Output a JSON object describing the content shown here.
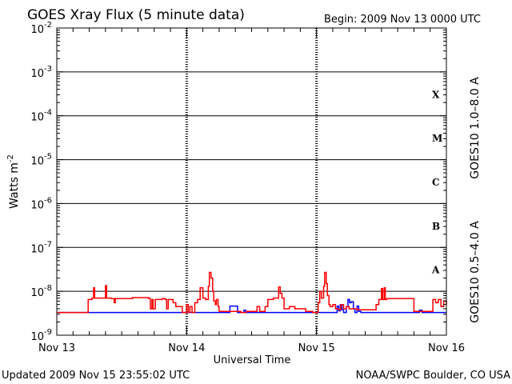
{
  "title": "GOES Xray Flux (5 minute data)",
  "begin": "Begin:  2009 Nov 13 0000 UTC",
  "updated": "Updated 2009 Nov 15 23:55:02 UTC",
  "credit": "NOAA/SWPC Boulder, CO USA",
  "ylabel_main": "Watts m",
  "ylabel_exp": "-2",
  "xlabel": "Universal Time",
  "right_labels": {
    "long": "GOES10 1.0–8.0 A",
    "short": "GOES10 0.5–4.0 A"
  },
  "colors": {
    "long": "#ff0000",
    "short": "#0000ff",
    "axis": "#000000"
  },
  "chart_data": {
    "type": "line",
    "title": "GOES Xray Flux (5 minute data)",
    "xlabel": "Universal Time",
    "ylabel": "Watts m^-2",
    "yscale": "log",
    "ylim": [
      1e-09,
      0.01
    ],
    "xlim": [
      0,
      72
    ],
    "x_unit": "hours since 2009 Nov 13 0000 UTC",
    "x_ticks": [
      {
        "x": 0,
        "label": "Nov 13"
      },
      {
        "x": 24,
        "label": "Nov 14"
      },
      {
        "x": 48,
        "label": "Nov 15"
      },
      {
        "x": 72,
        "label": "Nov 16"
      }
    ],
    "y_ticks": [
      {
        "base": "10",
        "exp": "-9",
        "value": 1e-09
      },
      {
        "base": "10",
        "exp": "-8",
        "value": 1e-08
      },
      {
        "base": "10",
        "exp": "-7",
        "value": 1e-07
      },
      {
        "base": "10",
        "exp": "-6",
        "value": 1e-06
      },
      {
        "base": "10",
        "exp": "-5",
        "value": 1e-05
      },
      {
        "base": "10",
        "exp": "-4",
        "value": 0.0001
      },
      {
        "base": "10",
        "exp": "-3",
        "value": 0.001
      },
      {
        "base": "10",
        "exp": "-2",
        "value": 0.01
      }
    ],
    "flare_classes": [
      {
        "label": "A",
        "log_center": -7.5
      },
      {
        "label": "B",
        "log_center": -6.5
      },
      {
        "label": "C",
        "log_center": -5.5
      },
      {
        "label": "M",
        "log_center": -4.5
      },
      {
        "label": "X",
        "log_center": -3.5
      }
    ],
    "grid": "horizontal lines at each decade from 1e-8 to 1e-3; dotted vertical lines at day boundaries",
    "series": [
      {
        "name": "GOES10 1.0–8.0 A",
        "color": "#ff0000",
        "points": [
          [
            0,
            3.3e-09
          ],
          [
            5,
            3.3e-09
          ],
          [
            5.5,
            3.3e-09
          ],
          [
            5.8,
            6.5e-09
          ],
          [
            6.5,
            7e-09
          ],
          [
            6.8,
            1.2e-08
          ],
          [
            7,
            7e-09
          ],
          [
            8.5,
            7e-09
          ],
          [
            9,
            1.35e-08
          ],
          [
            9.2,
            7e-09
          ],
          [
            9.8,
            7e-09
          ],
          [
            10,
            6.8e-09
          ],
          [
            10.4,
            6.8e-09
          ],
          [
            10.6,
            5.5e-09
          ],
          [
            10.8,
            6.8e-09
          ],
          [
            14,
            7.2e-09
          ],
          [
            17,
            6.8e-09
          ],
          [
            17.3,
            4e-09
          ],
          [
            17.6,
            6.5e-09
          ],
          [
            17.8,
            4e-09
          ],
          [
            18.2,
            6.5e-09
          ],
          [
            19.5,
            6.8e-09
          ],
          [
            20,
            6.5e-09
          ],
          [
            20.3,
            4e-09
          ],
          [
            20.6,
            6.5e-09
          ],
          [
            21.5,
            5.5e-09
          ],
          [
            22,
            4.5e-09
          ],
          [
            23,
            4.5e-09
          ],
          [
            23.2,
            3.3e-09
          ],
          [
            23.8,
            3.3e-09
          ],
          [
            24,
            5e-09
          ],
          [
            24.3,
            3.3e-09
          ],
          [
            24.6,
            4.5e-09
          ],
          [
            25,
            3.3e-09
          ],
          [
            25.3,
            3.3e-09
          ],
          [
            25.5,
            5.5e-09
          ],
          [
            26,
            6.5e-09
          ],
          [
            26.5,
            1.2e-08
          ],
          [
            27,
            7e-09
          ],
          [
            27.5,
            6.5e-09
          ],
          [
            28,
            1.3e-08
          ],
          [
            28.2,
            2.7e-08
          ],
          [
            28.5,
            2e-08
          ],
          [
            28.8,
            1e-08
          ],
          [
            29,
            6e-09
          ],
          [
            29.3,
            5e-09
          ],
          [
            29.5,
            6.5e-09
          ],
          [
            29.8,
            4.5e-09
          ],
          [
            30,
            3.5e-09
          ],
          [
            31,
            3.5e-09
          ],
          [
            33,
            3.5e-09
          ],
          [
            34,
            3.3e-09
          ],
          [
            35,
            3.5e-09
          ],
          [
            36,
            3.5e-09
          ],
          [
            37,
            4.5e-09
          ],
          [
            37.5,
            3.5e-09
          ],
          [
            38,
            3.5e-09
          ],
          [
            38.5,
            4.5e-09
          ],
          [
            39,
            6.5e-09
          ],
          [
            40,
            7e-09
          ],
          [
            40.8,
            7e-09
          ],
          [
            41,
            1.25e-08
          ],
          [
            41.3,
            9e-09
          ],
          [
            41.6,
            7e-09
          ],
          [
            42,
            4e-09
          ],
          [
            42.5,
            4e-09
          ],
          [
            43,
            4.5e-09
          ],
          [
            43.5,
            4.5e-09
          ],
          [
            44,
            4e-09
          ],
          [
            45,
            4e-09
          ],
          [
            46,
            3.5e-09
          ],
          [
            47,
            3.5e-09
          ],
          [
            47.3,
            3.3e-09
          ],
          [
            48,
            3.3e-09
          ],
          [
            48.3,
            5.5e-09
          ],
          [
            48.6,
            1e-08
          ],
          [
            48.9,
            7e-09
          ],
          [
            49.3,
            1.3e-08
          ],
          [
            49.5,
            2.7e-08
          ],
          [
            49.8,
            1.5e-08
          ],
          [
            50,
            8e-09
          ],
          [
            50.3,
            5e-09
          ],
          [
            50.5,
            4.5e-09
          ],
          [
            51,
            5e-09
          ],
          [
            51.5,
            4e-09
          ],
          [
            52,
            3.8e-09
          ],
          [
            52.5,
            5e-09
          ],
          [
            53,
            4e-09
          ],
          [
            53.5,
            4.5e-09
          ],
          [
            54,
            4e-09
          ],
          [
            54.5,
            4e-09
          ],
          [
            55,
            4e-09
          ],
          [
            55.5,
            3.8e-09
          ],
          [
            56,
            3.8e-09
          ],
          [
            56.5,
            3.8e-09
          ],
          [
            57,
            3.8e-09
          ],
          [
            58,
            3.8e-09
          ],
          [
            58.8,
            3.8e-09
          ],
          [
            59,
            5e-09
          ],
          [
            59.5,
            6.5e-09
          ],
          [
            60,
            1.15e-08
          ],
          [
            60.2,
            6.5e-09
          ],
          [
            60.5,
            1.2e-08
          ],
          [
            60.7,
            6.5e-09
          ],
          [
            61,
            6.8e-09
          ],
          [
            62,
            6.8e-09
          ],
          [
            63,
            6.8e-09
          ],
          [
            64,
            6.8e-09
          ],
          [
            65,
            6.8e-09
          ],
          [
            66,
            3.5e-09
          ],
          [
            68,
            3.5e-09
          ],
          [
            69,
            3.5e-09
          ],
          [
            69.5,
            6.5e-09
          ],
          [
            70,
            5.5e-09
          ],
          [
            70.5,
            6.5e-09
          ],
          [
            71,
            4.5e-09
          ],
          [
            71.5,
            6e-09
          ],
          [
            72,
            5e-09
          ]
        ]
      },
      {
        "name": "GOES10 0.5–4.0 A",
        "color": "#0000ff",
        "points": [
          [
            0,
            3.3e-09
          ],
          [
            31.8,
            3.3e-09
          ],
          [
            32,
            4.6e-09
          ],
          [
            33.2,
            4.6e-09
          ],
          [
            33.4,
            3.3e-09
          ],
          [
            34.4,
            3.3e-09
          ],
          [
            34.6,
            3.7e-09
          ],
          [
            34.9,
            3.3e-09
          ],
          [
            36,
            3.3e-09
          ],
          [
            51.5,
            3.3e-09
          ],
          [
            51.8,
            4.6e-09
          ],
          [
            52.1,
            3.6e-09
          ],
          [
            52.4,
            5e-09
          ],
          [
            52.7,
            3.8e-09
          ],
          [
            53,
            3.3e-09
          ],
          [
            53.5,
            4.5e-09
          ],
          [
            53.8,
            6.5e-09
          ],
          [
            54.1,
            5.5e-09
          ],
          [
            54.4,
            5.8e-09
          ],
          [
            54.8,
            4e-09
          ],
          [
            55.1,
            3.3e-09
          ],
          [
            55.5,
            4.6e-09
          ],
          [
            55.8,
            3.5e-09
          ],
          [
            56.2,
            3.3e-09
          ],
          [
            66.5,
            3.3e-09
          ],
          [
            67,
            3.7e-09
          ],
          [
            67.5,
            3.3e-09
          ],
          [
            72,
            3.3e-09
          ]
        ]
      }
    ]
  }
}
